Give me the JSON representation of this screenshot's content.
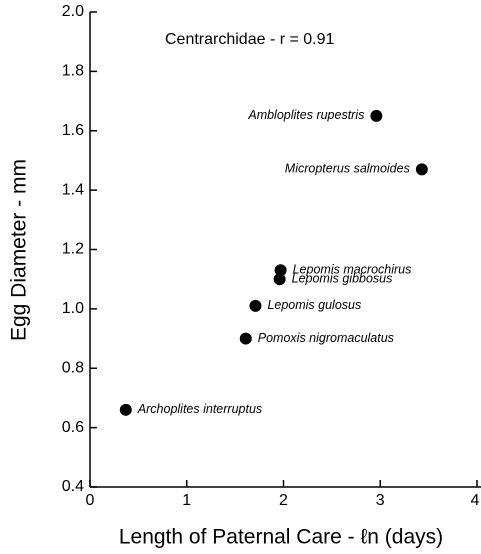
{
  "chart_data": {
    "type": "scatter",
    "annotation": "Centrarchidae - r = 0.91",
    "xlabel": "Length of Paternal Care - ℓn (days)",
    "ylabel": "Egg Diameter - mm",
    "series": [
      {
        "name": "Centrarchidae",
        "color": "#000000",
        "labels": [
          "Ambloplites rupestris",
          "Micropterus salmoides",
          "Lepomis macrochirus",
          "Lepomis gibbosus",
          "Lepomis gulosus",
          "Pomoxis nigromaculatus",
          "Archoplites interruptus"
        ],
        "x": [
          2.96,
          3.43,
          1.97,
          1.96,
          1.71,
          1.61,
          0.37
        ],
        "values": [
          1.65,
          1.47,
          1.13,
          1.1,
          1.01,
          0.9,
          0.66
        ]
      }
    ],
    "xlim": [
      0,
      4
    ],
    "xticks": [
      0,
      1,
      2,
      3,
      4
    ],
    "ylim": [
      0.4,
      2.0
    ],
    "yticks": [
      0.4,
      0.6,
      0.8,
      {
        "value": 1.0,
        "label": "1.0"
      },
      1.2,
      1.4,
      1.6,
      1.8,
      {
        "value": 2.0,
        "label": "2.0"
      }
    ]
  }
}
